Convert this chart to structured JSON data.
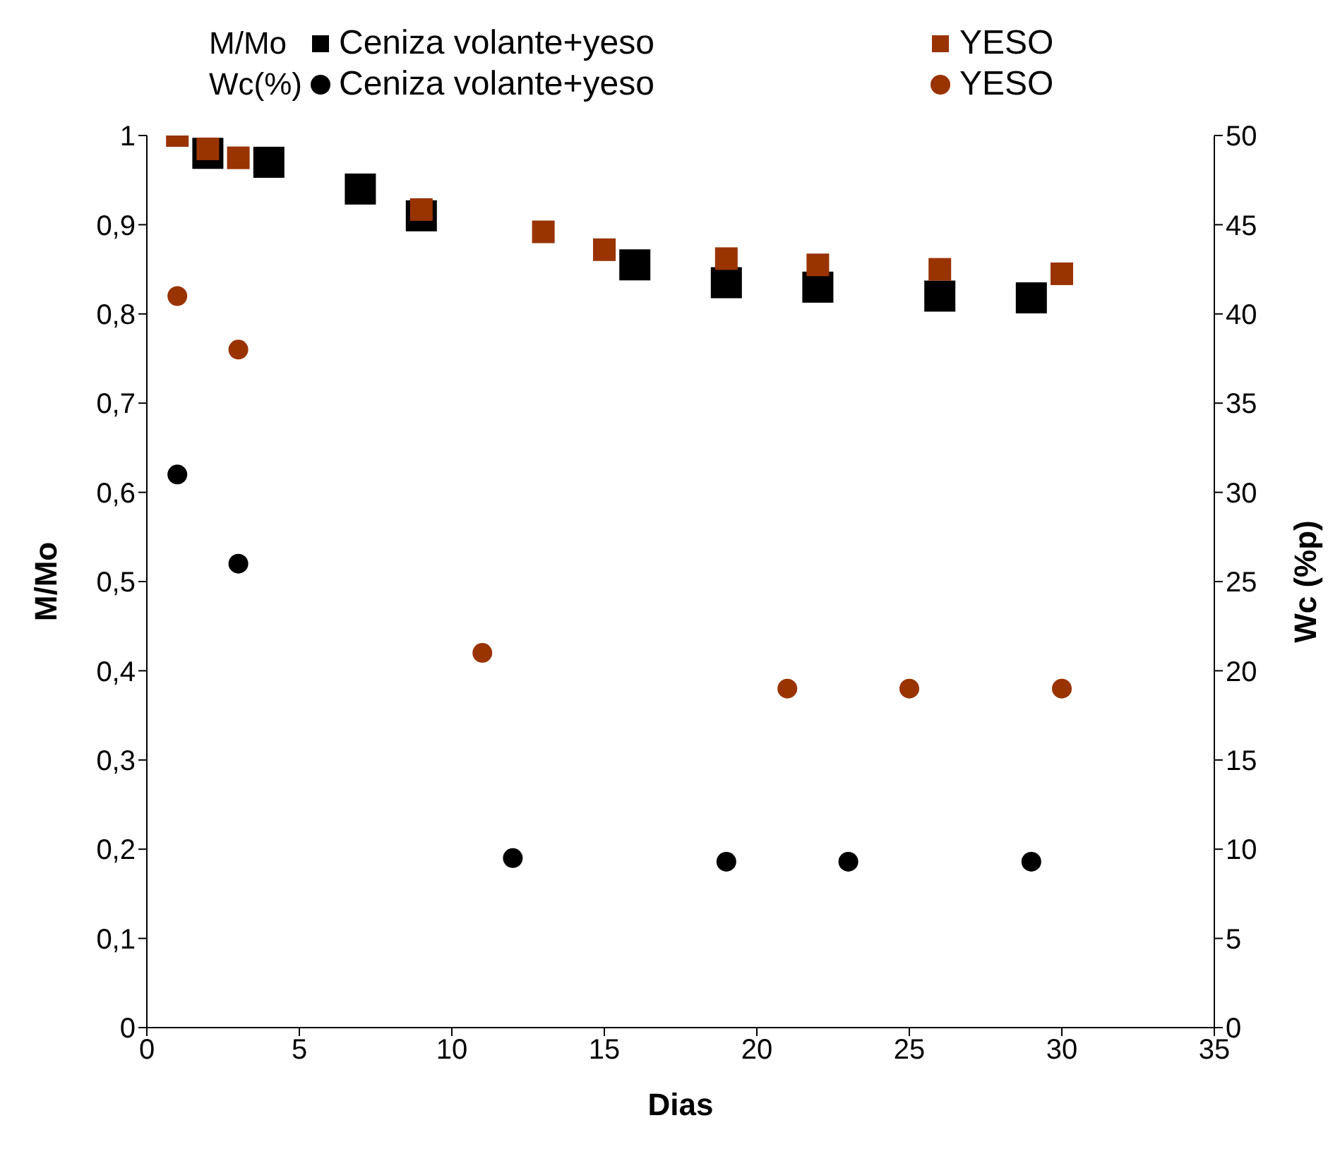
{
  "chart_data": {
    "type": "scatter",
    "xlabel": "Dias",
    "ylabel": "M/Mo",
    "y2label": "Wc (%p)",
    "annotations": [
      "M/Mo",
      "Wc(%)"
    ],
    "legend": "top",
    "grid": false,
    "xlim": [
      0,
      35
    ],
    "xticks": [
      0,
      5,
      10,
      15,
      20,
      25,
      30,
      35
    ],
    "ylim": [
      0,
      1
    ],
    "yticks": [
      {
        "value": 0,
        "label": "0"
      },
      {
        "value": 0.1,
        "label": "0,1"
      },
      {
        "value": 0.2,
        "label": "0,2"
      },
      {
        "value": 0.3,
        "label": "0,3"
      },
      {
        "value": 0.4,
        "label": "0,4"
      },
      {
        "value": 0.5,
        "label": "0,5"
      },
      {
        "value": 0.6,
        "label": "0,6"
      },
      {
        "value": 0.7,
        "label": "0,7"
      },
      {
        "value": 0.8,
        "label": "0,8"
      },
      {
        "value": 0.9,
        "label": "0,9"
      },
      {
        "value": 1,
        "label": "1"
      }
    ],
    "y2lim": [
      0,
      50
    ],
    "y2ticks": [
      0,
      5,
      10,
      15,
      20,
      25,
      30,
      35,
      40,
      45,
      50
    ],
    "series": [
      {
        "name": "Ceniza volante+yeso",
        "color": "#000000",
        "marker": "square",
        "x": [
          2,
          4,
          7,
          9,
          16,
          19,
          22,
          26,
          29
        ],
        "values": [
          0.98,
          0.97,
          0.94,
          0.91,
          0.855,
          0.835,
          0.83,
          0.82,
          0.818
        ]
      },
      {
        "name": "YESO",
        "color": "#993300",
        "marker": "square",
        "x": [
          1,
          2,
          3,
          9,
          13,
          15,
          19,
          22,
          26,
          30
        ],
        "values": [
          1.0,
          0.985,
          0.975,
          0.917,
          0.892,
          0.872,
          0.862,
          0.855,
          0.85,
          0.845
        ]
      },
      {
        "name": "Ceniza volante+yeso",
        "color": "#000000",
        "marker": "circle",
        "axis": "y2",
        "x": [
          1,
          3,
          12,
          19,
          23,
          29
        ],
        "values": [
          31,
          26,
          9.5,
          9.3,
          9.3,
          9.3
        ]
      },
      {
        "name": "YESO",
        "color": "#993300",
        "marker": "circle",
        "axis": "y2",
        "x": [
          1,
          3,
          11,
          21,
          25,
          30
        ],
        "values": [
          41,
          38,
          21,
          19,
          19,
          19
        ]
      }
    ]
  }
}
